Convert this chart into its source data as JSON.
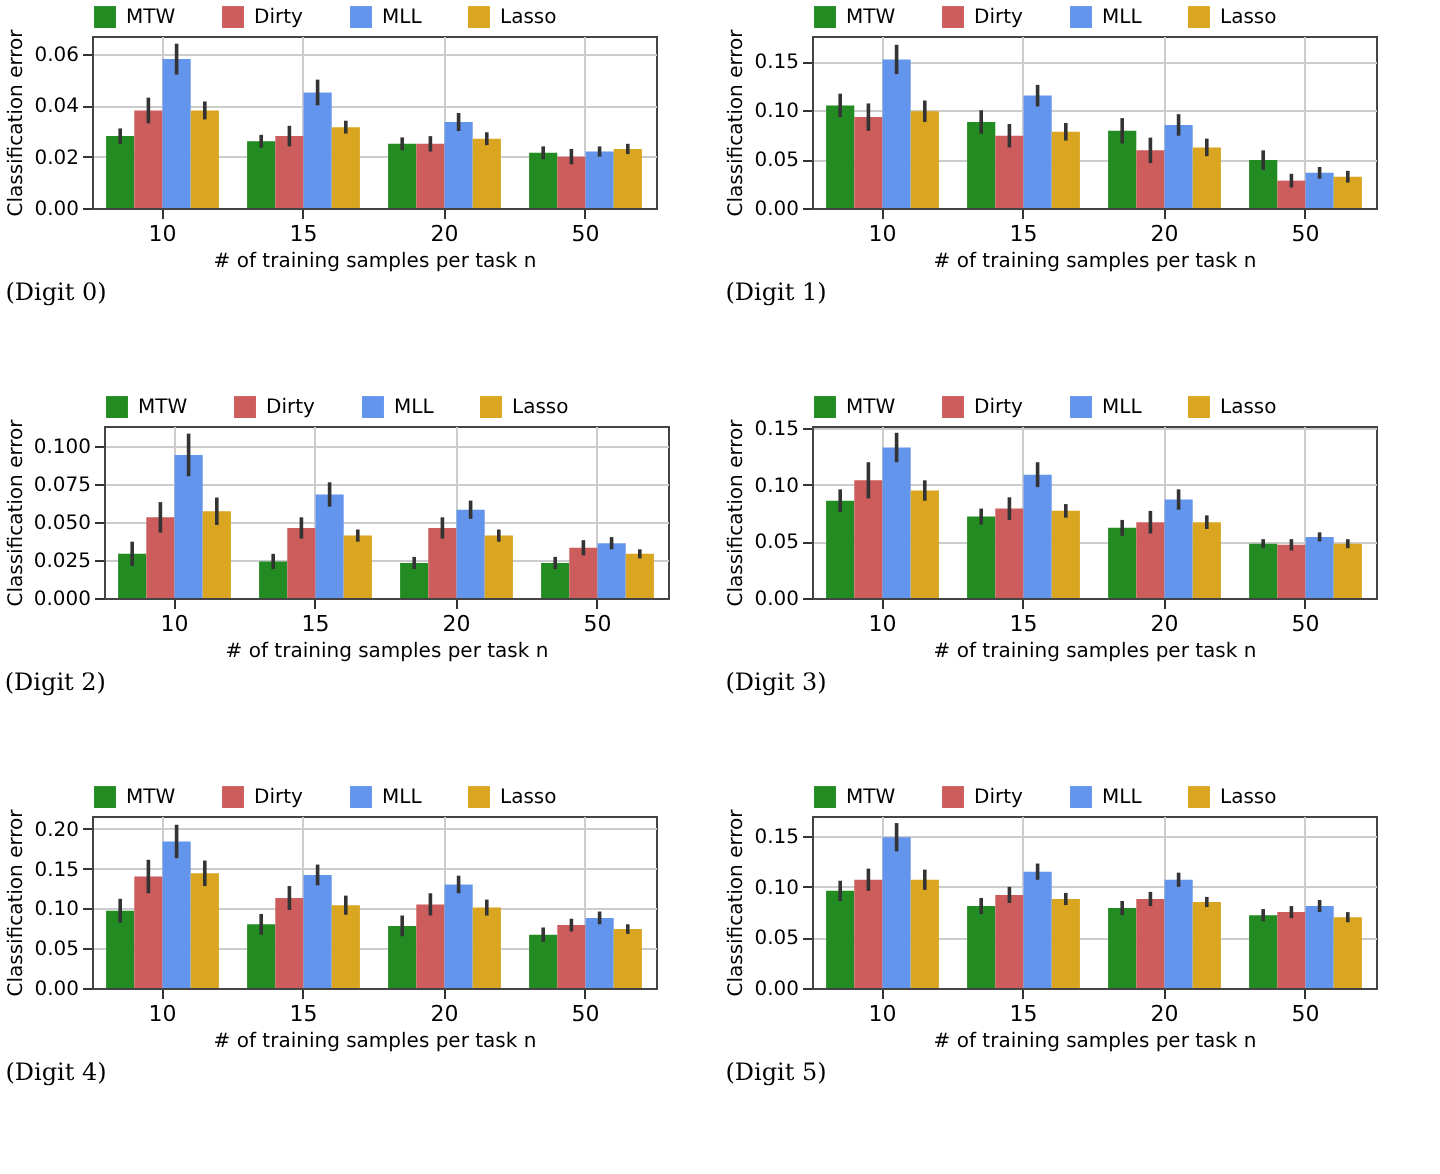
{
  "chart_data": [
    {
      "type": "bar",
      "categories": [
        "10",
        "15",
        "20",
        "50"
      ],
      "xlabel": "# of training samples per task n",
      "ylabel": "Classification error",
      "ylim": [
        0,
        0.067
      ],
      "yticks": [
        {
          "value": 0,
          "label": "0.00"
        },
        {
          "value": 0.02,
          "label": "0.02"
        },
        {
          "value": 0.04,
          "label": "0.04"
        },
        {
          "value": 0.06,
          "label": "0.06"
        }
      ],
      "grid": true,
      "legend": "top",
      "annotations": [
        "(Digit 0)"
      ],
      "series": [
        {
          "name": "MTW",
          "color": "#228b22",
          "values": [
            0.028,
            0.026,
            0.025,
            0.0215
          ],
          "errors": [
            0.003,
            0.0025,
            0.0025,
            0.0025
          ]
        },
        {
          "name": "Dirty",
          "color": "#cd5c5c",
          "values": [
            0.038,
            0.028,
            0.025,
            0.02
          ],
          "errors": [
            0.005,
            0.004,
            0.003,
            0.003
          ]
        },
        {
          "name": "MLL",
          "color": "#6495ed",
          "values": [
            0.058,
            0.045,
            0.0335,
            0.022
          ],
          "errors": [
            0.006,
            0.005,
            0.0035,
            0.002
          ]
        },
        {
          "name": "Lasso",
          "color": "#daa520",
          "values": [
            0.038,
            0.0315,
            0.027,
            0.023
          ],
          "errors": [
            0.0035,
            0.0025,
            0.0025,
            0.002
          ]
        }
      ]
    },
    {
      "type": "bar",
      "categories": [
        "10",
        "15",
        "20",
        "50"
      ],
      "xlabel": "# of training samples per task n",
      "ylabel": "Classification error",
      "ylim": [
        0,
        0.176
      ],
      "yticks": [
        {
          "value": 0,
          "label": "0.00"
        },
        {
          "value": 0.05,
          "label": "0.05"
        },
        {
          "value": 0.1,
          "label": "0.10"
        },
        {
          "value": 0.15,
          "label": "0.15"
        }
      ],
      "grid": true,
      "legend": "top",
      "annotations": [
        "(Digit 1)"
      ],
      "series": [
        {
          "name": "MTW",
          "color": "#228b22",
          "values": [
            0.105,
            0.088,
            0.079,
            0.049
          ],
          "errors": [
            0.012,
            0.012,
            0.013,
            0.01
          ]
        },
        {
          "name": "Dirty",
          "color": "#cd5c5c",
          "values": [
            0.093,
            0.074,
            0.059,
            0.028
          ],
          "errors": [
            0.014,
            0.012,
            0.013,
            0.007
          ]
        },
        {
          "name": "MLL",
          "color": "#6495ed",
          "values": [
            0.152,
            0.115,
            0.085,
            0.036
          ],
          "errors": [
            0.015,
            0.011,
            0.011,
            0.006
          ]
        },
        {
          "name": "Lasso",
          "color": "#daa520",
          "values": [
            0.099,
            0.078,
            0.062,
            0.032
          ],
          "errors": [
            0.011,
            0.009,
            0.009,
            0.006
          ]
        }
      ]
    },
    {
      "type": "bar",
      "categories": [
        "10",
        "15",
        "20",
        "50"
      ],
      "xlabel": "# of training samples per task n",
      "ylabel": "Classification error",
      "ylim": [
        0,
        0.113
      ],
      "yticks": [
        {
          "value": 0,
          "label": "0.000"
        },
        {
          "value": 0.025,
          "label": "0.025"
        },
        {
          "value": 0.05,
          "label": "0.050"
        },
        {
          "value": 0.075,
          "label": "0.075"
        },
        {
          "value": 0.1,
          "label": "0.100"
        }
      ],
      "grid": true,
      "legend": "top",
      "annotations": [
        "(Digit 2)"
      ],
      "series": [
        {
          "name": "MTW",
          "color": "#228b22",
          "values": [
            0.029,
            0.024,
            0.023,
            0.023
          ],
          "errors": [
            0.008,
            0.005,
            0.004,
            0.004
          ]
        },
        {
          "name": "Dirty",
          "color": "#cd5c5c",
          "values": [
            0.053,
            0.046,
            0.046,
            0.033
          ],
          "errors": [
            0.01,
            0.007,
            0.007,
            0.005
          ]
        },
        {
          "name": "MLL",
          "color": "#6495ed",
          "values": [
            0.094,
            0.068,
            0.058,
            0.036
          ],
          "errors": [
            0.014,
            0.008,
            0.006,
            0.004
          ]
        },
        {
          "name": "Lasso",
          "color": "#daa520",
          "values": [
            0.057,
            0.041,
            0.041,
            0.029
          ],
          "errors": [
            0.009,
            0.004,
            0.004,
            0.003
          ]
        }
      ]
    },
    {
      "type": "bar",
      "categories": [
        "10",
        "15",
        "20",
        "50"
      ],
      "xlabel": "# of training samples per task n",
      "ylabel": "Classification error",
      "ylim": [
        0,
        0.152
      ],
      "yticks": [
        {
          "value": 0,
          "label": "0.00"
        },
        {
          "value": 0.05,
          "label": "0.05"
        },
        {
          "value": 0.1,
          "label": "0.10"
        },
        {
          "value": 0.15,
          "label": "0.15"
        }
      ],
      "grid": true,
      "legend": "top",
      "annotations": [
        "(Digit 3)"
      ],
      "series": [
        {
          "name": "MTW",
          "color": "#228b22",
          "values": [
            0.086,
            0.072,
            0.062,
            0.048
          ],
          "errors": [
            0.01,
            0.007,
            0.007,
            0.004
          ]
        },
        {
          "name": "Dirty",
          "color": "#cd5c5c",
          "values": [
            0.104,
            0.079,
            0.067,
            0.047
          ],
          "errors": [
            0.016,
            0.01,
            0.01,
            0.005
          ]
        },
        {
          "name": "MLL",
          "color": "#6495ed",
          "values": [
            0.133,
            0.109,
            0.087,
            0.054
          ],
          "errors": [
            0.013,
            0.011,
            0.009,
            0.004
          ]
        },
        {
          "name": "Lasso",
          "color": "#daa520",
          "values": [
            0.095,
            0.077,
            0.067,
            0.048
          ],
          "errors": [
            0.009,
            0.006,
            0.006,
            0.004
          ]
        }
      ]
    },
    {
      "type": "bar",
      "categories": [
        "10",
        "15",
        "20",
        "50"
      ],
      "xlabel": "# of training samples per task n",
      "ylabel": "Classification error",
      "ylim": [
        0,
        0.216
      ],
      "yticks": [
        {
          "value": 0,
          "label": "0.00"
        },
        {
          "value": 0.05,
          "label": "0.05"
        },
        {
          "value": 0.1,
          "label": "0.10"
        },
        {
          "value": 0.15,
          "label": "0.15"
        },
        {
          "value": 0.2,
          "label": "0.20"
        }
      ],
      "grid": true,
      "legend": "top",
      "annotations": [
        "(Digit 4)"
      ],
      "series": [
        {
          "name": "MTW",
          "color": "#228b22",
          "values": [
            0.097,
            0.08,
            0.078,
            0.067
          ],
          "errors": [
            0.015,
            0.013,
            0.013,
            0.009
          ]
        },
        {
          "name": "Dirty",
          "color": "#cd5c5c",
          "values": [
            0.14,
            0.113,
            0.105,
            0.079
          ],
          "errors": [
            0.021,
            0.015,
            0.014,
            0.008
          ]
        },
        {
          "name": "MLL",
          "color": "#6495ed",
          "values": [
            0.184,
            0.142,
            0.13,
            0.088
          ],
          "errors": [
            0.021,
            0.013,
            0.011,
            0.008
          ]
        },
        {
          "name": "Lasso",
          "color": "#daa520",
          "values": [
            0.144,
            0.104,
            0.101,
            0.074
          ],
          "errors": [
            0.016,
            0.012,
            0.01,
            0.006
          ]
        }
      ]
    },
    {
      "type": "bar",
      "categories": [
        "10",
        "15",
        "20",
        "50"
      ],
      "xlabel": "# of training samples per task n",
      "ylabel": "Classification error",
      "ylim": [
        0,
        0.17
      ],
      "yticks": [
        {
          "value": 0,
          "label": "0.00"
        },
        {
          "value": 0.05,
          "label": "0.05"
        },
        {
          "value": 0.1,
          "label": "0.10"
        },
        {
          "value": 0.15,
          "label": "0.15"
        }
      ],
      "grid": true,
      "legend": "top",
      "annotations": [
        "(Digit 5)"
      ],
      "series": [
        {
          "name": "MTW",
          "color": "#228b22",
          "values": [
            0.096,
            0.081,
            0.079,
            0.072
          ],
          "errors": [
            0.01,
            0.008,
            0.007,
            0.006
          ]
        },
        {
          "name": "Dirty",
          "color": "#cd5c5c",
          "values": [
            0.107,
            0.092,
            0.088,
            0.075
          ],
          "errors": [
            0.011,
            0.008,
            0.007,
            0.006
          ]
        },
        {
          "name": "MLL",
          "color": "#6495ed",
          "values": [
            0.149,
            0.115,
            0.107,
            0.081
          ],
          "errors": [
            0.014,
            0.008,
            0.007,
            0.006
          ]
        },
        {
          "name": "Lasso",
          "color": "#daa520",
          "values": [
            0.107,
            0.088,
            0.085,
            0.07
          ],
          "errors": [
            0.01,
            0.006,
            0.005,
            0.005
          ]
        }
      ]
    }
  ]
}
